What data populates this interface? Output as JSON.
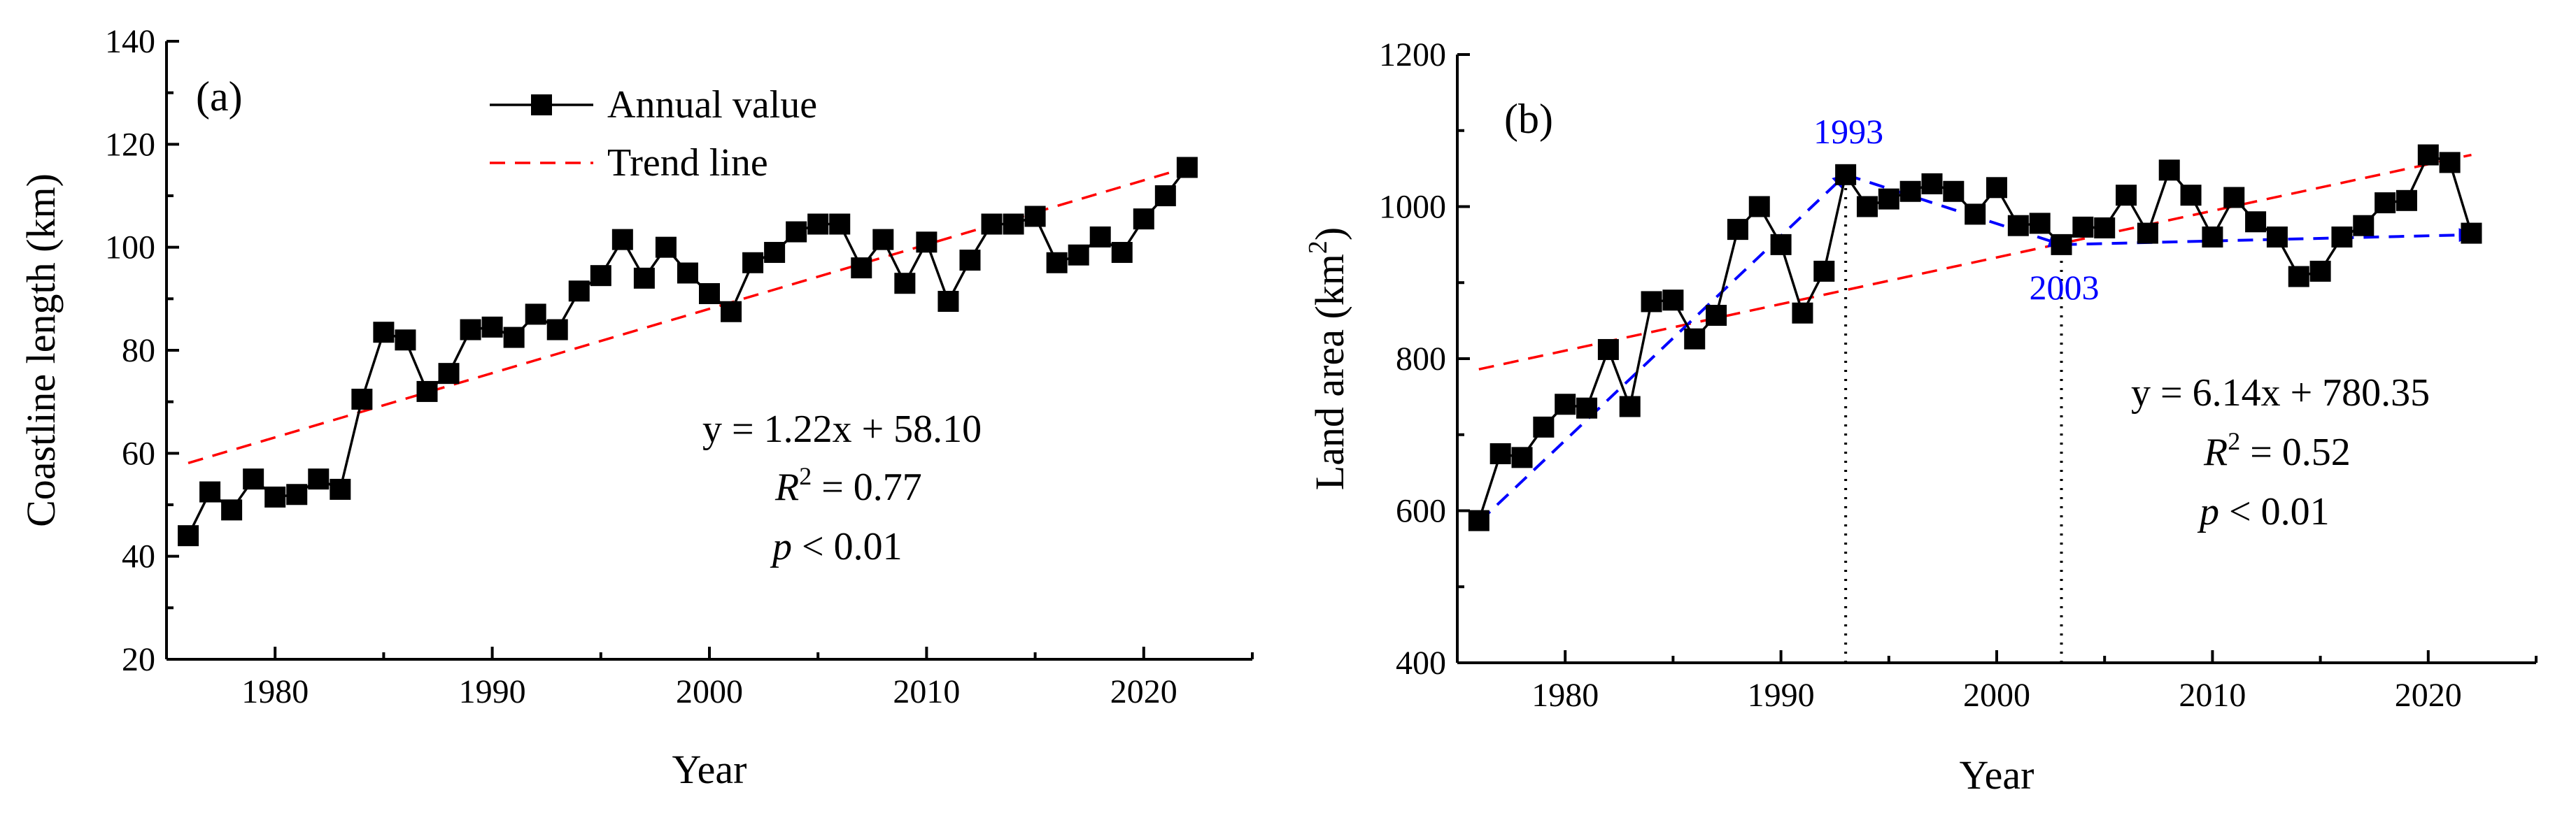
{
  "chart_data": [
    {
      "type": "line",
      "panel_label": "(a)",
      "xlabel": "Year",
      "ylabel": "Coastline length (km)",
      "xlim": [
        1975,
        2025
      ],
      "ylim": [
        20,
        140
      ],
      "x_ticks": [
        1980,
        1990,
        2000,
        2010,
        2020
      ],
      "y_ticks": [
        20,
        40,
        60,
        80,
        100,
        120,
        140
      ],
      "legend": {
        "placement": "top-center",
        "series_label": "Annual value",
        "trend_label": "Trend line"
      },
      "series": [
        {
          "name": "Annual value",
          "x": [
            1976,
            1977,
            1978,
            1979,
            1980,
            1981,
            1982,
            1983,
            1984,
            1985,
            1986,
            1987,
            1988,
            1989,
            1990,
            1991,
            1992,
            1993,
            1994,
            1995,
            1996,
            1997,
            1998,
            1999,
            2000,
            2001,
            2002,
            2003,
            2004,
            2005,
            2006,
            2007,
            2008,
            2009,
            2010,
            2011,
            2012,
            2013,
            2014,
            2015,
            2016,
            2017,
            2018,
            2019,
            2020,
            2021,
            2022
          ],
          "y": [
            44,
            52.5,
            49,
            55,
            51.5,
            52,
            55,
            53,
            70.5,
            83.5,
            82,
            72,
            75.5,
            84,
            84.5,
            82.5,
            87,
            84,
            91.5,
            94.5,
            101.5,
            94,
            100,
            95,
            91,
            87.5,
            97,
            99,
            103,
            104.5,
            104.5,
            96,
            101.5,
            93,
            101,
            89.5,
            97.5,
            104.5,
            104.5,
            106,
            97,
            98.5,
            102,
            99,
            105.5,
            110,
            115.5
          ]
        }
      ],
      "trend": {
        "slope": 1.22,
        "intercept": 58.1,
        "x_start": 1976,
        "x_end": 2022,
        "y_start": 58.1,
        "y_end": 115.5
      },
      "annotations": {
        "equation": "y = 1.22x + 58.10",
        "r2_label": "R",
        "r2_sup": "2",
        "r2_value": " = 0.77",
        "p_label": "p",
        "p_value": " < 0.01"
      }
    },
    {
      "type": "line",
      "panel_label": "(b)",
      "xlabel": "Year",
      "ylabel_main": "Land area (km",
      "ylabel_sup": "2",
      "ylabel_end": ")",
      "xlim": [
        1975,
        2025
      ],
      "ylim": [
        400,
        1200
      ],
      "x_ticks": [
        1980,
        1990,
        2000,
        2010,
        2020
      ],
      "y_ticks": [
        400,
        600,
        800,
        1000,
        1200
      ],
      "series": [
        {
          "name": "Annual value",
          "x": [
            1976,
            1977,
            1978,
            1979,
            1980,
            1981,
            1982,
            1983,
            1984,
            1985,
            1986,
            1987,
            1988,
            1989,
            1990,
            1991,
            1992,
            1993,
            1994,
            1995,
            1996,
            1997,
            1998,
            1999,
            2000,
            2001,
            2002,
            2003,
            2004,
            2005,
            2006,
            2007,
            2008,
            2009,
            2010,
            2011,
            2012,
            2013,
            2014,
            2015,
            2016,
            2017,
            2018,
            2019,
            2020,
            2021,
            2022
          ],
          "y": [
            587,
            675,
            670,
            710,
            740,
            735,
            812,
            737,
            875,
            877,
            826,
            857,
            970,
            1000,
            950,
            860,
            915,
            1042,
            1000,
            1010,
            1020,
            1030,
            1020,
            990,
            1025,
            975,
            978,
            950,
            973,
            972,
            1015,
            965,
            1048,
            1015,
            960,
            1012,
            980,
            960,
            908,
            915,
            960,
            975,
            1005,
            1008,
            1068,
            1058,
            965
          ]
        }
      ],
      "trend": {
        "slope": 6.14,
        "intercept": 780.35,
        "x_start": 1976,
        "x_end": 2022,
        "y_start": 786,
        "y_end": 1068
      },
      "arrows": [
        {
          "from": [
            1976,
            585
          ],
          "to": [
            1993,
            1042
          ]
        },
        {
          "from": [
            1993,
            1042
          ],
          "to": [
            2003,
            950
          ]
        },
        {
          "from": [
            2003,
            950
          ],
          "to": [
            2022,
            963
          ]
        }
      ],
      "vlines": [
        {
          "x": 1993,
          "y_from": 400,
          "y_to": 1042
        },
        {
          "x": 2003,
          "y_from": 400,
          "y_to": 950
        }
      ],
      "marker_labels": [
        {
          "text": "1993",
          "x": 1993,
          "y": 1042,
          "placement": "above"
        },
        {
          "text": "2003",
          "x": 2003,
          "y": 950,
          "placement": "below"
        }
      ],
      "annotations": {
        "equation": "y = 6.14x + 780.35",
        "r2_label": "R",
        "r2_sup": "2",
        "r2_value": " = 0.52",
        "p_label": "p",
        "p_value": " < 0.01"
      }
    }
  ]
}
